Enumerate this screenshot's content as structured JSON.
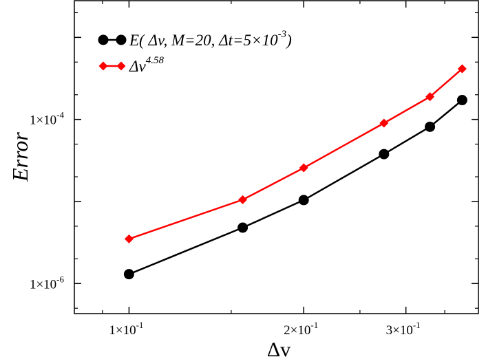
{
  "chart_data": {
    "type": "line",
    "xlabel": "Δv",
    "ylabel": "Error",
    "xscale": "log",
    "yscale": "log",
    "xlim": [
      0.0805,
      0.4
    ],
    "ylim": [
      4.3e-07,
      0.0028
    ],
    "x_ticks": [
      {
        "value": 0.1,
        "label": "1×10",
        "exp": "-1"
      },
      {
        "value": 0.2,
        "label": "2×10",
        "exp": "-1"
      },
      {
        "value": 0.3,
        "label": "3×10",
        "exp": "-1"
      }
    ],
    "y_ticks": [
      {
        "value": 1e-06,
        "label": "1×10",
        "exp": "-6"
      },
      {
        "value": 0.0001,
        "label": "1×10",
        "exp": "-4"
      }
    ],
    "grid": false,
    "legend_position": "top-left",
    "series": [
      {
        "name": "E(Δv, M=20, Δt=5×10⁻³)",
        "legend_main": "E( Δv, M=20,   Δt=5×10",
        "legend_sup": "-3",
        "legend_tail": ")",
        "color": "#000000",
        "marker": "circle",
        "x": [
          0.1,
          0.157,
          0.2,
          0.275,
          0.33,
          0.375
        ],
        "y": [
          1.3e-06,
          4.8e-06,
          1.04e-05,
          3.78e-05,
          8.14e-05,
          0.000172
        ]
      },
      {
        "name": "Δv^4.58",
        "legend_main": "Δv",
        "legend_sup": "4.58",
        "legend_tail": "",
        "color": "#ff0000",
        "marker": "diamond",
        "x": [
          0.1,
          0.157,
          0.2,
          0.275,
          0.33,
          0.375
        ],
        "y": [
          3.5e-06,
          1.05e-05,
          2.57e-05,
          9.02e-05,
          0.000189,
          0.000414
        ]
      }
    ]
  }
}
